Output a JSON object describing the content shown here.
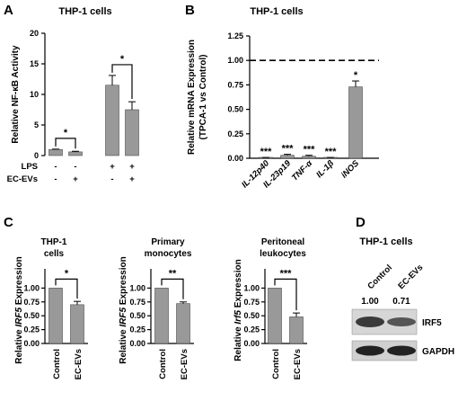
{
  "chart_data": [
    {
      "panel": "A",
      "type": "bar",
      "title": "THP-1 cells",
      "ylabel": "Relative NF-κB Activity",
      "ylim": [
        0,
        20
      ],
      "yticks": [
        "0",
        "5",
        "10",
        "15",
        "20"
      ],
      "yticks_values": [
        0,
        5,
        10,
        15,
        20
      ],
      "values": [
        1.0,
        0.6,
        11.5,
        7.5
      ],
      "errors": [
        0.05,
        0.1,
        1.6,
        1.3
      ],
      "colors": [
        "#999999",
        "#999999",
        "#999999",
        "#999999"
      ],
      "conditions": [
        {
          "label": "LPS",
          "marks": [
            "-",
            "-",
            "+",
            "+"
          ]
        },
        {
          "label": "EC-EVs",
          "marks": [
            "-",
            "+",
            "-",
            "+"
          ]
        }
      ],
      "significance": [
        {
          "pair": [
            0,
            1
          ],
          "label": "*"
        },
        {
          "pair": [
            2,
            3
          ],
          "label": "*"
        }
      ]
    },
    {
      "panel": "B",
      "type": "bar",
      "title": "THP-1 cells",
      "ylabel": "Relative mRNA Expression",
      "ylabel2": "(TPCA-1 vs Control)",
      "ylim": [
        0,
        1.25
      ],
      "yticks": [
        "0.00",
        "0.25",
        "0.50",
        "0.75",
        "1.00",
        "1.25"
      ],
      "yticks_values": [
        0,
        0.25,
        0.5,
        0.75,
        1.0,
        1.25
      ],
      "categories": [
        "IL-12p40",
        "IL-23p19",
        "TNF-α",
        "IL-1β",
        "iNOS"
      ],
      "values": [
        0.005,
        0.03,
        0.02,
        0.005,
        0.73
      ],
      "errors": [
        0.003,
        0.01,
        0.01,
        0.003,
        0.06
      ],
      "stars": [
        "***",
        "***",
        "***",
        "***",
        "*"
      ],
      "reference_line": 1.0
    },
    {
      "panel": "C",
      "type": "bar",
      "subplots": [
        {
          "title_lines": [
            "THP-1",
            "cells"
          ],
          "ylabel_pre": "Relative ",
          "ylabel_gene": "IRF5",
          "ylabel_post": " Expression",
          "categories": [
            "Control",
            "EC-EVs"
          ],
          "values": [
            1.0,
            0.7
          ],
          "errors": [
            0.0,
            0.06
          ],
          "ylim": [
            0,
            1.25
          ],
          "yticks": [
            "0.00",
            "0.25",
            "0.50",
            "0.75",
            "1.00"
          ],
          "yticks_values": [
            0,
            0.25,
            0.5,
            0.75,
            1.0
          ],
          "significance": "*"
        },
        {
          "title_lines": [
            "Primary",
            "monocytes"
          ],
          "ylabel_pre": "Relative ",
          "ylabel_gene": "IRF5",
          "ylabel_post": " Expression",
          "categories": [
            "Control",
            "EC-EVs"
          ],
          "values": [
            1.0,
            0.72
          ],
          "errors": [
            0.0,
            0.03
          ],
          "ylim": [
            0,
            1.25
          ],
          "yticks": [
            "0.00",
            "0.25",
            "0.50",
            "0.75",
            "1.00"
          ],
          "yticks_values": [
            0,
            0.25,
            0.5,
            0.75,
            1.0
          ],
          "significance": "**"
        },
        {
          "title_lines": [
            "Peritoneal",
            "leukocytes"
          ],
          "ylabel_pre": "Relative ",
          "ylabel_gene": "Irf5",
          "ylabel_post": " Expression",
          "categories": [
            "Control",
            "EC-EVs"
          ],
          "values": [
            1.0,
            0.48
          ],
          "errors": [
            0.0,
            0.07
          ],
          "ylim": [
            0,
            1.25
          ],
          "yticks": [
            "0.00",
            "0.25",
            "0.50",
            "0.75",
            "1.00"
          ],
          "yticks_values": [
            0,
            0.25,
            0.5,
            0.75,
            1.0
          ],
          "significance": "***"
        }
      ]
    },
    {
      "panel": "D",
      "type": "blot",
      "title": "THP-1 cells",
      "lanes": [
        "Control",
        "EC-EVs"
      ],
      "quantification": [
        "1.00",
        "0.71"
      ],
      "bands": [
        "IRF5",
        "GAPDH"
      ]
    }
  ]
}
